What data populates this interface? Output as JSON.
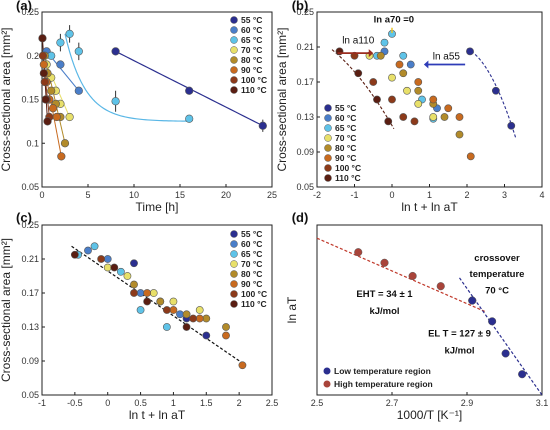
{
  "colors": {
    "55": "#2b2f8f",
    "60": "#4a7ec9",
    "65": "#5fc3e8",
    "70": "#e8e06a",
    "80": "#b28b2a",
    "90": "#c86a1f",
    "100": "#8c3a1a",
    "110": "#5a1e12",
    "fit_a": "#5ab7e6",
    "fit_a_55": "#2b2f8f",
    "fit_low": "#2b2f8f",
    "fit_high": "#c0392b",
    "fit_c": "#111111",
    "arrow_ha": "#9b2c1e",
    "arrow_blue": "#2e3cb8",
    "arrow_yellow": "#e8c42a",
    "low_marker": "#2b2f8f",
    "high_marker": "#a9443a"
  },
  "legend_labels": [
    "55 °C",
    "60 °C",
    "65 °C",
    "70 °C",
    "80 °C",
    "90 °C",
    "100 °C",
    "110 °C"
  ],
  "chart_data": [
    {
      "panel": "(a)",
      "type": "scatter",
      "xlabel": "Time [h]",
      "ylabel": "Cross-sectional area [mm²]",
      "xlim": [
        0,
        25
      ],
      "ylim": [
        0.05,
        0.25
      ],
      "xticks": [
        "0",
        "5",
        "10",
        "15",
        "20",
        "25"
      ],
      "yticks": [
        "0.05",
        "0.1",
        "0.15",
        "0.2",
        "0.25"
      ],
      "series": [
        {
          "name": "55 °C",
          "x": [
            8,
            16,
            24
          ],
          "y": [
            0.205,
            0.16,
            0.12
          ],
          "err": [
            0.0,
            0.0,
            0.007
          ]
        },
        {
          "name": "60 °C",
          "x": [
            0.5,
            2,
            4
          ],
          "y": [
            0.205,
            0.19,
            0.16
          ],
          "err": [
            0.0,
            0.0,
            0.0
          ]
        },
        {
          "name": "65 °C",
          "x": [
            1,
            2,
            3,
            4,
            8,
            16
          ],
          "y": [
            0.2,
            0.215,
            0.225,
            0.205,
            0.148,
            0.128
          ],
          "err": [
            0,
            0.01,
            0.01,
            0.01,
            0.012,
            0
          ]
        },
        {
          "name": "70 °C",
          "x": [
            0.5,
            1,
            1.5,
            2,
            3
          ],
          "y": [
            0.19,
            0.175,
            0.16,
            0.145,
            0.13
          ],
          "err": [
            0,
            0,
            0,
            0,
            0
          ]
        },
        {
          "name": "80 °C",
          "x": [
            0.3,
            0.6,
            1,
            1.5,
            2,
            2.5
          ],
          "y": [
            0.2,
            0.18,
            0.16,
            0.145,
            0.13,
            0.1
          ],
          "err": [
            0,
            0,
            0,
            0,
            0,
            0
          ]
        },
        {
          "name": "90 °C",
          "x": [
            0.2,
            0.5,
            0.8,
            1.2,
            1.6,
            2.1
          ],
          "y": [
            0.19,
            0.17,
            0.15,
            0.14,
            0.13,
            0.085
          ],
          "err": [
            0,
            0,
            0,
            0,
            0,
            0
          ]
        },
        {
          "name": "100 °C",
          "x": [
            0.1,
            0.3,
            0.5,
            0.8
          ],
          "y": [
            0.2,
            0.17,
            0.15,
            0.13
          ],
          "err": [
            0,
            0,
            0,
            0
          ]
        },
        {
          "name": "110 °C",
          "x": [
            0.05,
            0.2,
            0.4,
            0.6
          ],
          "y": [
            0.22,
            0.18,
            0.15,
            0.125
          ],
          "err": [
            0,
            0,
            0,
            0
          ]
        }
      ]
    },
    {
      "panel": "(b)",
      "type": "scatter",
      "xlabel": "ln t + ln aT",
      "ylabel": "Cross-sectional area [mm²]",
      "xlim": [
        -2,
        4
      ],
      "ylim": [
        0.05,
        0.25
      ],
      "xticks": [
        "-2",
        "-1",
        "0",
        "1",
        "2",
        "3",
        "4"
      ],
      "yticks": [
        "0.05",
        "0.09",
        "0.13",
        "0.17",
        "0.21",
        "0.25"
      ],
      "annotations": [
        "ln a70 =0",
        "ln a110",
        "ln a55"
      ],
      "series": [
        {
          "name": "55 °C",
          "x": [
            2.08,
            2.77,
            3.18
          ],
          "y": [
            0.205,
            0.16,
            0.12
          ]
        },
        {
          "name": "60 °C",
          "x": [
            -0.2,
            0.5,
            1.2
          ],
          "y": [
            0.205,
            0.19,
            0.14
          ]
        },
        {
          "name": "65 °C",
          "x": [
            -0.4,
            -0.2,
            0.0,
            0.3,
            0.8,
            1.1
          ],
          "y": [
            0.2,
            0.215,
            0.225,
            0.2,
            0.15,
            0.128
          ]
        },
        {
          "name": "70 °C",
          "x": [
            -0.6,
            0.0,
            0.4,
            0.7,
            1.1
          ],
          "y": [
            0.2,
            0.175,
            0.16,
            0.145,
            0.13
          ]
        },
        {
          "name": "80 °C",
          "x": [
            -0.3,
            0.3,
            0.7,
            1.1,
            1.4,
            1.8
          ],
          "y": [
            0.2,
            0.18,
            0.16,
            0.145,
            0.13,
            0.11
          ]
        },
        {
          "name": "90 °C",
          "x": [
            0.2,
            0.7,
            1.1,
            1.5,
            1.8,
            2.1
          ],
          "y": [
            0.19,
            0.17,
            0.15,
            0.14,
            0.13,
            0.085
          ]
        },
        {
          "name": "100 °C",
          "x": [
            -1.0,
            -0.5,
            0.0,
            0.3,
            0.6
          ],
          "y": [
            0.2,
            0.17,
            0.15,
            0.13,
            0.125
          ]
        },
        {
          "name": "110 °C",
          "x": [
            -1.4,
            -0.9,
            -0.4,
            -0.1
          ],
          "y": [
            0.205,
            0.18,
            0.15,
            0.125
          ]
        }
      ]
    },
    {
      "panel": "(c)",
      "type": "scatter",
      "xlabel": "ln t + ln aT",
      "ylabel": "Cross-sectional area [mm²]",
      "xlim": [
        -1,
        2.5
      ],
      "ylim": [
        0.05,
        0.25
      ],
      "xticks": [
        "-1",
        "-0.5",
        "0",
        "0.5",
        "1",
        "1.5",
        "2",
        "2.5"
      ],
      "yticks": [
        "0.05",
        "0.09",
        "0.13",
        "0.17",
        "0.21",
        "0.25"
      ],
      "series": [
        {
          "name": "55 °C",
          "x": [
            0.4,
            1.2,
            1.5
          ],
          "y": [
            0.205,
            0.14,
            0.12
          ]
        },
        {
          "name": "60 °C",
          "x": [
            -0.3,
            0.0,
            0.5,
            0.8,
            1.1
          ],
          "y": [
            0.22,
            0.21,
            0.17,
            0.16,
            0.145
          ]
        },
        {
          "name": "65 °C",
          "x": [
            -0.45,
            -0.2,
            0.2,
            0.5,
            0.9
          ],
          "y": [
            0.215,
            0.225,
            0.195,
            0.15,
            0.13
          ]
        },
        {
          "name": "70 °C",
          "x": [
            0.0,
            0.3,
            0.7,
            1.0,
            1.4
          ],
          "y": [
            0.2,
            0.19,
            0.17,
            0.16,
            0.15
          ]
        },
        {
          "name": "80 °C",
          "x": [
            0.4,
            0.8,
            1.2,
            1.5,
            1.8
          ],
          "y": [
            0.18,
            0.16,
            0.145,
            0.14,
            0.13
          ]
        },
        {
          "name": "90 °C",
          "x": [
            0.6,
            1.0,
            1.4,
            1.8,
            2.05
          ],
          "y": [
            0.17,
            0.15,
            0.14,
            0.12,
            0.085
          ]
        },
        {
          "name": "100 °C",
          "x": [
            -0.1,
            0.4,
            0.9,
            1.3
          ],
          "y": [
            0.21,
            0.17,
            0.15,
            0.14
          ]
        },
        {
          "name": "110 °C",
          "x": [
            -0.5,
            0.1,
            0.6,
            1.2
          ],
          "y": [
            0.215,
            0.2,
            0.16,
            0.13
          ]
        }
      ]
    },
    {
      "panel": "(d)",
      "type": "scatter",
      "xlabel": "1000/T [K⁻¹]",
      "ylabel": "ln aT",
      "xlim": [
        2.5,
        3.1
      ],
      "ylim": [
        -2.5,
        2.0
      ],
      "xticks": [
        "2.5",
        "2.7",
        "2.9",
        "3.1"
      ],
      "yticks": [],
      "annotations": [
        {
          "text": "EHT = 34 ± 1",
          "text2": "kJ/mol"
        },
        {
          "text": "EL T = 127 ± 9",
          "text2": "kJ/mol"
        },
        {
          "text": "crossover",
          "text2": "temperature",
          "text3": "70 °C"
        }
      ],
      "legend": [
        "Low temperature region",
        "High temperature region"
      ],
      "series": [
        {
          "name": "Low temperature region",
          "x": [
            2.914,
            2.967,
            3.003,
            3.047
          ],
          "y": [
            0.0,
            -0.55,
            -1.4,
            -1.95
          ]
        },
        {
          "name": "High temperature region",
          "x": [
            2.61,
            2.68,
            2.755,
            2.83,
            2.914
          ],
          "y": [
            1.28,
            1.0,
            0.65,
            0.38,
            0.0
          ]
        }
      ]
    }
  ]
}
